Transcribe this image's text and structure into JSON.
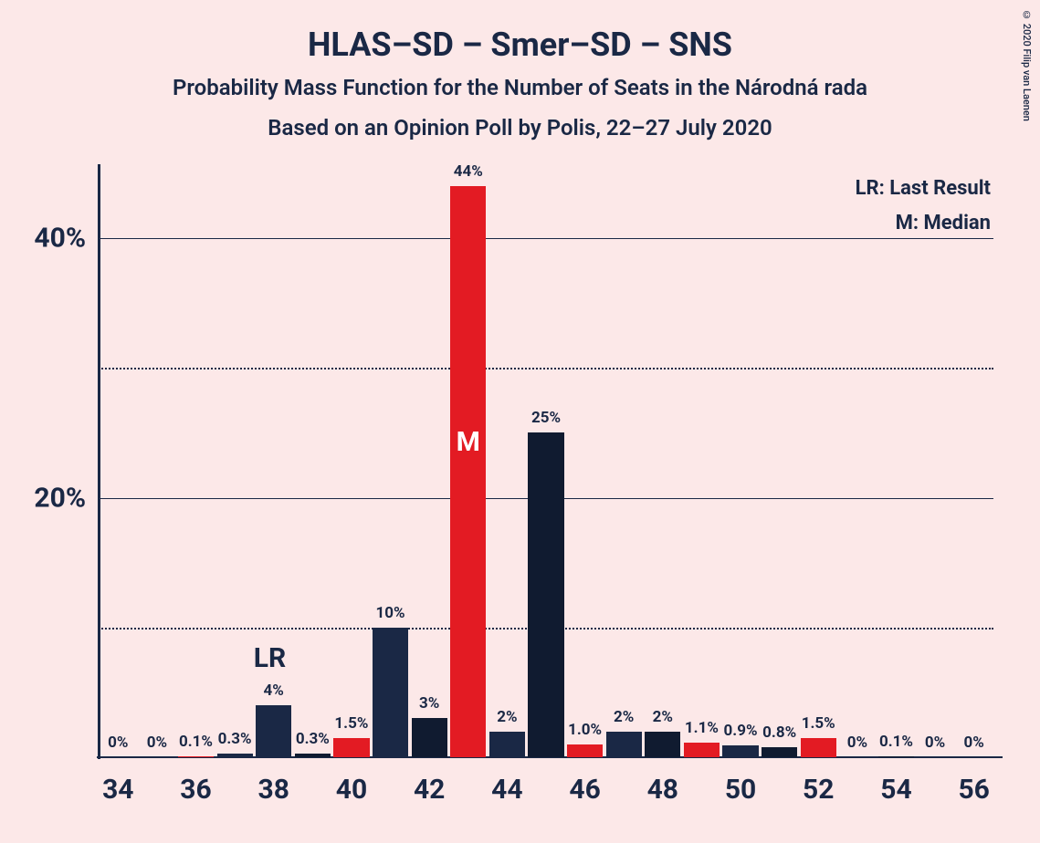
{
  "title": "HLAS–SD – Smer–SD – SNS",
  "subtitle1": "Probability Mass Function for the Number of Seats in the Národná rada",
  "subtitle2": "Based on an Opinion Poll by Polis, 22–27 July 2020",
  "copyright": "© 2020 Filip van Laenen",
  "legend": {
    "lr": "LR: Last Result",
    "m": "M: Median"
  },
  "chart": {
    "type": "bar",
    "background_color": "#fce8e8",
    "title_fontsize": 36,
    "subtitle_fontsize": 24,
    "legend_fontsize": 22,
    "axis_label_fontsize": 30,
    "bar_label_fontsize": 17,
    "lr_marker_fontsize": 30,
    "median_marker_fontsize": 30,
    "text_color": "#1a2845",
    "colors": {
      "red": "#e31b23",
      "navy": "#1a2845",
      "dark_navy": "#101b30"
    },
    "ylim": [
      0,
      45
    ],
    "y_ticks": [
      20,
      40
    ],
    "y_tick_labels": [
      "20%",
      "40%"
    ],
    "y_minor_ticks": [
      10,
      30
    ],
    "xlim": [
      33.5,
      56.5
    ],
    "x_ticks": [
      34,
      36,
      38,
      40,
      42,
      44,
      46,
      48,
      50,
      52,
      54,
      56
    ],
    "x_tick_labels": [
      "34",
      "36",
      "38",
      "40",
      "42",
      "44",
      "46",
      "48",
      "50",
      "52",
      "54",
      "56"
    ],
    "bar_width": 0.92,
    "lr_position": 38,
    "lr_label": "LR",
    "median_position": 43,
    "median_label": "M",
    "bars": [
      {
        "x": 34,
        "value": 0,
        "label": "0%",
        "color": "#e31b23"
      },
      {
        "x": 35,
        "value": 0,
        "label": "0%",
        "color": "#1a2845"
      },
      {
        "x": 36,
        "value": 0.1,
        "label": "0.1%",
        "color": "#e31b23"
      },
      {
        "x": 37,
        "value": 0.3,
        "label": "0.3%",
        "color": "#1a2845"
      },
      {
        "x": 38,
        "value": 4,
        "label": "4%",
        "color": "#1a2845"
      },
      {
        "x": 39,
        "value": 0.3,
        "label": "0.3%",
        "color": "#101b30"
      },
      {
        "x": 40,
        "value": 1.5,
        "label": "1.5%",
        "color": "#e31b23"
      },
      {
        "x": 41,
        "value": 10,
        "label": "10%",
        "color": "#1a2845"
      },
      {
        "x": 42,
        "value": 3,
        "label": "3%",
        "color": "#101b30"
      },
      {
        "x": 43,
        "value": 44,
        "label": "44%",
        "color": "#e31b23"
      },
      {
        "x": 44,
        "value": 2,
        "label": "2%",
        "color": "#1a2845"
      },
      {
        "x": 45,
        "value": 25,
        "label": "25%",
        "color": "#101b30"
      },
      {
        "x": 46,
        "value": 1.0,
        "label": "1.0%",
        "color": "#e31b23"
      },
      {
        "x": 47,
        "value": 2,
        "label": "2%",
        "color": "#1a2845"
      },
      {
        "x": 48,
        "value": 2,
        "label": "2%",
        "color": "#101b30"
      },
      {
        "x": 49,
        "value": 1.1,
        "label": "1.1%",
        "color": "#e31b23"
      },
      {
        "x": 50,
        "value": 0.9,
        "label": "0.9%",
        "color": "#1a2845"
      },
      {
        "x": 51,
        "value": 0.8,
        "label": "0.8%",
        "color": "#101b30"
      },
      {
        "x": 52,
        "value": 1.5,
        "label": "1.5%",
        "color": "#e31b23"
      },
      {
        "x": 53,
        "value": 0,
        "label": "0%",
        "color": "#1a2845"
      },
      {
        "x": 54,
        "value": 0.1,
        "label": "0.1%",
        "color": "#101b30"
      },
      {
        "x": 55,
        "value": 0,
        "label": "0%",
        "color": "#e31b23"
      },
      {
        "x": 56,
        "value": 0,
        "label": "0%",
        "color": "#1a2845"
      }
    ]
  }
}
